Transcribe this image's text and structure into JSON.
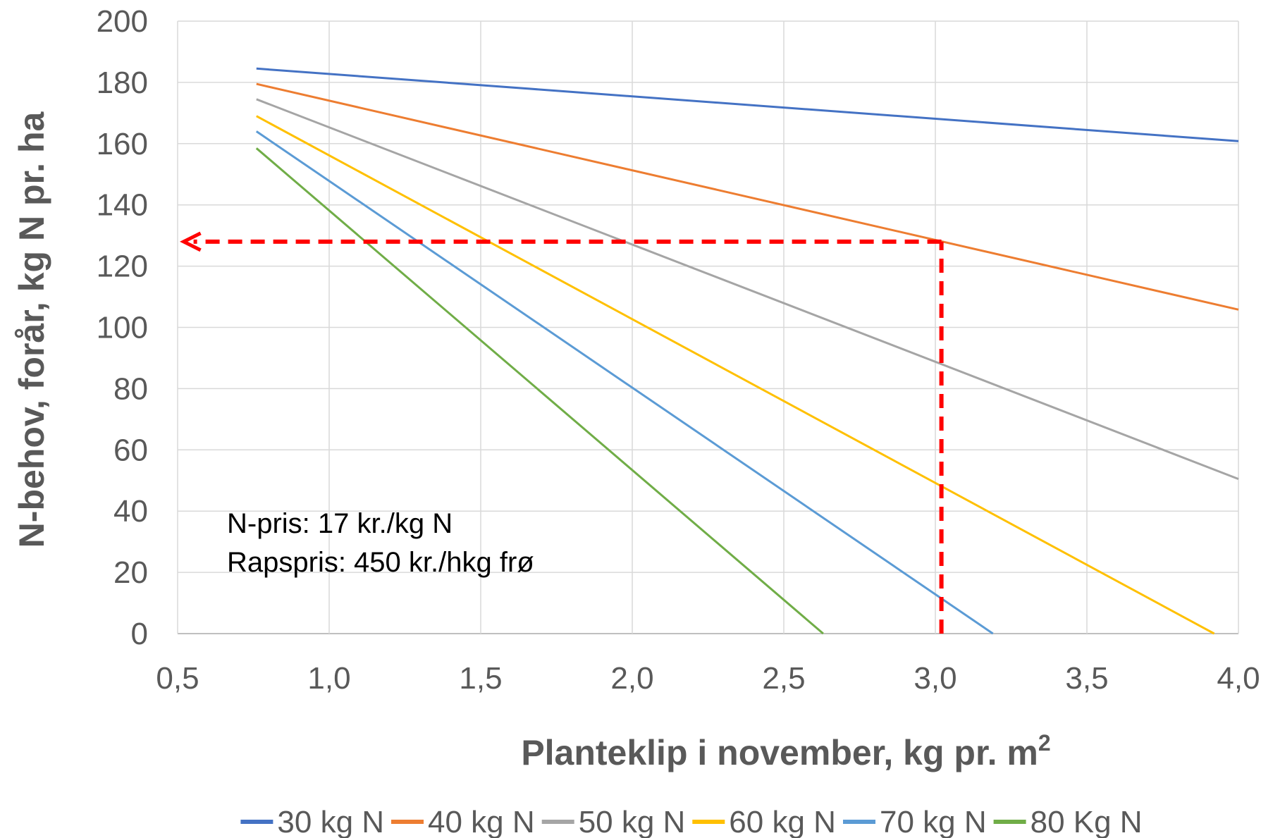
{
  "chart_data": {
    "type": "line",
    "xlabel": "Planteklip i november, kg pr. m",
    "xlabel_superscript": "2",
    "ylabel": "N-behov, forår, kg N pr. ha",
    "xlim": [
      0.5,
      4.0
    ],
    "ylim": [
      0,
      200
    ],
    "x_ticks": [
      "0,5",
      "1,0",
      "1,5",
      "2,0",
      "2,5",
      "3,0",
      "3,5",
      "4,0"
    ],
    "y_ticks": [
      "0",
      "20",
      "40",
      "60",
      "80",
      "100",
      "120",
      "140",
      "160",
      "180",
      "200"
    ],
    "grid": true,
    "legend_position": "bottom",
    "annotations": [
      "N-pris: 17 kr./kg N",
      "Rapspris: 450 kr./hkg frø"
    ],
    "series": [
      {
        "name": "30 kg N",
        "color": "#4472C4",
        "points": [
          [
            0.76,
            184.5
          ],
          [
            4.0,
            160.8
          ]
        ]
      },
      {
        "name": "40 kg N",
        "color": "#ED7D31",
        "points": [
          [
            0.76,
            179.5
          ],
          [
            4.0,
            105.8
          ]
        ]
      },
      {
        "name": "50 kg N",
        "color": "#A5A5A5",
        "points": [
          [
            0.76,
            174.5
          ],
          [
            4.0,
            50.5
          ]
        ]
      },
      {
        "name": "60 kg N",
        "color": "#FFC000",
        "points": [
          [
            0.76,
            169.0
          ],
          [
            3.92,
            0.0
          ]
        ]
      },
      {
        "name": "70 kg N",
        "color": "#5B9BD5",
        "points": [
          [
            0.76,
            164.0
          ],
          [
            3.19,
            0.0
          ]
        ]
      },
      {
        "name": "80 Kg N",
        "color": "#70AD47",
        "points": [
          [
            0.76,
            158.5
          ],
          [
            2.63,
            0.0
          ]
        ]
      }
    ],
    "reference_lines": {
      "color": "#FF0000",
      "x": 3.02,
      "y": 128,
      "arrow_to_x": 0.52
    }
  }
}
